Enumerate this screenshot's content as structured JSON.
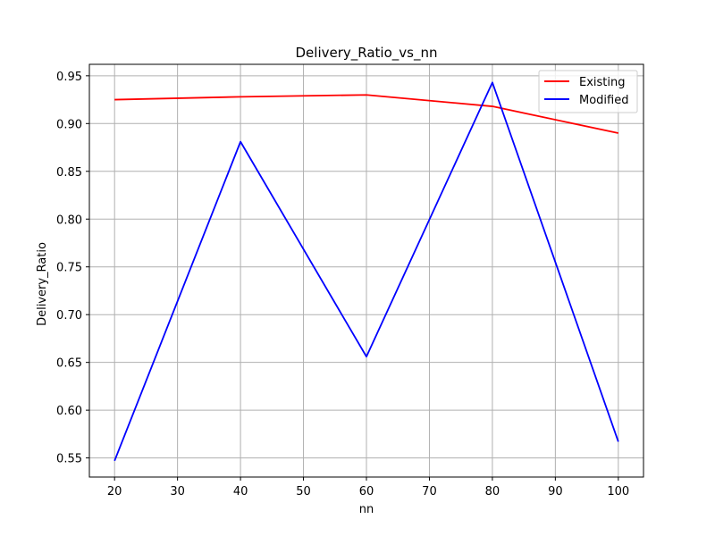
{
  "chart_data": {
    "type": "line",
    "title": "Delivery_Ratio_vs_nn",
    "xlabel": "nn",
    "ylabel": "Delivery_Ratio",
    "x": [
      20,
      40,
      60,
      80,
      100
    ],
    "xticks": [
      20,
      30,
      40,
      50,
      60,
      70,
      80,
      90,
      100
    ],
    "xtick_labels": [
      "20",
      "30",
      "40",
      "50",
      "60",
      "70",
      "80",
      "90",
      "100"
    ],
    "yticks": [
      0.55,
      0.6,
      0.65,
      0.7,
      0.75,
      0.8,
      0.85,
      0.9,
      0.95
    ],
    "ytick_labels": [
      "0.55",
      "0.60",
      "0.65",
      "0.70",
      "0.75",
      "0.80",
      "0.85",
      "0.90",
      "0.95"
    ],
    "xlim": [
      16,
      104
    ],
    "ylim": [
      0.53,
      0.962
    ],
    "grid": true,
    "legend_position": "top-right",
    "series": [
      {
        "name": "Existing",
        "color": "#ff0000",
        "values": [
          0.925,
          0.928,
          0.93,
          0.918,
          0.89
        ]
      },
      {
        "name": "Modified",
        "color": "#0000ff",
        "values": [
          0.547,
          0.881,
          0.656,
          0.943,
          0.567
        ]
      }
    ]
  }
}
